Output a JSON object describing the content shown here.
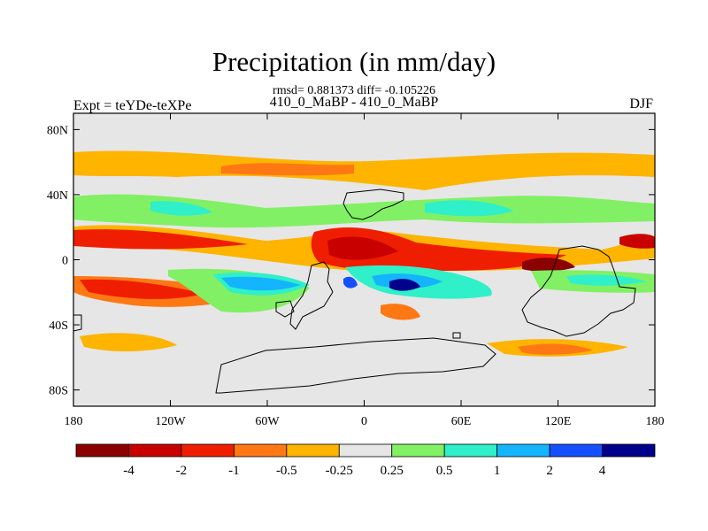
{
  "chart_data": {
    "type": "heatmap",
    "title": "Precipitation (in mm/day)",
    "stats_text": "rmsd= 0.881373 diff= -0.105226",
    "subtitle": "410_0_MaBP - 410_0_MaBP",
    "left_label": "Expt = teYDe-teXPe",
    "right_label": "DJF",
    "x_ticks": [
      {
        "value": -180,
        "label": "180"
      },
      {
        "value": -120,
        "label": "120W"
      },
      {
        "value": -60,
        "label": "60W"
      },
      {
        "value": 0,
        "label": "0"
      },
      {
        "value": 60,
        "label": "60E"
      },
      {
        "value": 120,
        "label": "120E"
      },
      {
        "value": 180,
        "label": "180"
      }
    ],
    "y_ticks": [
      {
        "value": 80,
        "label": "80N"
      },
      {
        "value": 40,
        "label": "40N"
      },
      {
        "value": 0,
        "label": "0"
      },
      {
        "value": -40,
        "label": "40S"
      },
      {
        "value": -80,
        "label": "80S"
      }
    ],
    "xlim": [
      -180,
      180
    ],
    "ylim": [
      -90,
      90
    ],
    "colorbar": {
      "colors": [
        "#8b0000",
        "#c80000",
        "#f01e00",
        "#ff7814",
        "#ffb400",
        "#e6e6e6",
        "#82f064",
        "#2ff0c8",
        "#14b4ff",
        "#1450ff",
        "#00008c"
      ],
      "labels": [
        "-4",
        "-2",
        "-1",
        "-0.5",
        "-0.25",
        "0.25",
        "0.5",
        "1",
        "2",
        "4"
      ]
    }
  }
}
